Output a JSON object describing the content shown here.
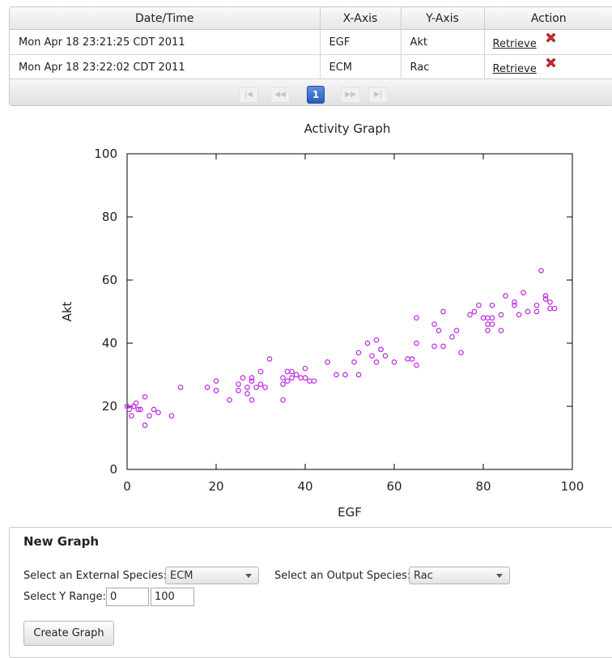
{
  "history_table": {
    "columns": [
      "Date/Time",
      "X-Axis",
      "Y-Axis",
      "Action"
    ],
    "rows": [
      {
        "datetime": "Mon Apr 18 23:21:25 CDT 2011",
        "x_axis": "EGF",
        "y_axis": "Akt",
        "action": "Retrieve"
      },
      {
        "datetime": "Mon Apr 18 23:22:02 CDT 2011",
        "x_axis": "ECM",
        "y_axis": "Rac",
        "action": "Retrieve"
      }
    ],
    "pager": {
      "first_icon": "first-page-icon",
      "prev_icon": "prev-page-icon",
      "current_page": "1",
      "next_icon": "next-page-icon",
      "last_icon": "last-page-icon"
    },
    "delete_icon_color": "#d02a2a"
  },
  "chart_data": {
    "type": "scatter",
    "title": "Activity Graph",
    "xlabel": "EGF",
    "ylabel": "Akt",
    "xlim": [
      0,
      100
    ],
    "ylim": [
      0,
      100
    ],
    "xticks": [
      0,
      20,
      40,
      60,
      80,
      100
    ],
    "yticks": [
      0,
      20,
      40,
      60,
      80,
      100
    ],
    "marker_color": "#c032e6",
    "points": [
      [
        0,
        20
      ],
      [
        0.5,
        19
      ],
      [
        1,
        17
      ],
      [
        1.5,
        20
      ],
      [
        2,
        21
      ],
      [
        2.5,
        19
      ],
      [
        3,
        19
      ],
      [
        4,
        14
      ],
      [
        4,
        23
      ],
      [
        5,
        17
      ],
      [
        6,
        19
      ],
      [
        7,
        18
      ],
      [
        10,
        17
      ],
      [
        12,
        26
      ],
      [
        18,
        26
      ],
      [
        20,
        25
      ],
      [
        20,
        28
      ],
      [
        23,
        22
      ],
      [
        25,
        25
      ],
      [
        25,
        27
      ],
      [
        26,
        29
      ],
      [
        27,
        24
      ],
      [
        27,
        26
      ],
      [
        28,
        22
      ],
      [
        28,
        28
      ],
      [
        28,
        29
      ],
      [
        29,
        26
      ],
      [
        30,
        27
      ],
      [
        30,
        31
      ],
      [
        31,
        26
      ],
      [
        32,
        35
      ],
      [
        35,
        22
      ],
      [
        35,
        27
      ],
      [
        35,
        29
      ],
      [
        36,
        28
      ],
      [
        36,
        31
      ],
      [
        37,
        29
      ],
      [
        37,
        31
      ],
      [
        38,
        30
      ],
      [
        39,
        29
      ],
      [
        40,
        29
      ],
      [
        40,
        32
      ],
      [
        41,
        28
      ],
      [
        42,
        28
      ],
      [
        45,
        34
      ],
      [
        47,
        30
      ],
      [
        49,
        30
      ],
      [
        51,
        34
      ],
      [
        52,
        30
      ],
      [
        52,
        37
      ],
      [
        54,
        40
      ],
      [
        55,
        36
      ],
      [
        56,
        34
      ],
      [
        56,
        41
      ],
      [
        57,
        38
      ],
      [
        57,
        38
      ],
      [
        58,
        36
      ],
      [
        60,
        34
      ],
      [
        63,
        35
      ],
      [
        64,
        35
      ],
      [
        65,
        33
      ],
      [
        65,
        40
      ],
      [
        65,
        48
      ],
      [
        69,
        39
      ],
      [
        69,
        46
      ],
      [
        70,
        44
      ],
      [
        71,
        39
      ],
      [
        71,
        50
      ],
      [
        73,
        42
      ],
      [
        74,
        44
      ],
      [
        75,
        37
      ],
      [
        77,
        49
      ],
      [
        78,
        50
      ],
      [
        79,
        52
      ],
      [
        80,
        48
      ],
      [
        81,
        44
      ],
      [
        81,
        46
      ],
      [
        81,
        48
      ],
      [
        82,
        46
      ],
      [
        82,
        48
      ],
      [
        82,
        52
      ],
      [
        84,
        44
      ],
      [
        84,
        49
      ],
      [
        85,
        55
      ],
      [
        87,
        52
      ],
      [
        87,
        53
      ],
      [
        88,
        49
      ],
      [
        89,
        56
      ],
      [
        90,
        50
      ],
      [
        92,
        50
      ],
      [
        92,
        52
      ],
      [
        93,
        63
      ],
      [
        94,
        54
      ],
      [
        94,
        55
      ],
      [
        95,
        51
      ],
      [
        95,
        53
      ],
      [
        96,
        51
      ]
    ]
  },
  "new_graph": {
    "title": "New Graph",
    "external_label": "Select an External Species:",
    "external_value": "ECM",
    "output_label": "Select an Output Species:",
    "output_value": "Rac",
    "yrange_label": "Select Y Range:",
    "ymin": "0",
    "ymax": "100",
    "create_label": "Create Graph"
  }
}
